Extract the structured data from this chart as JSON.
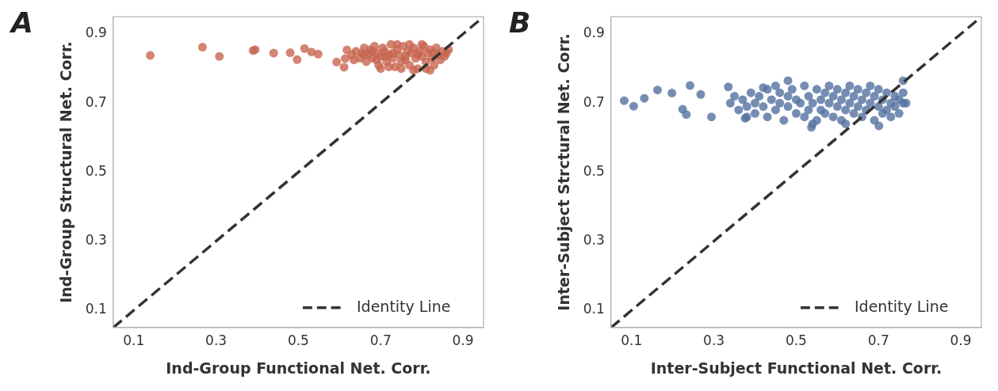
{
  "chart_data": [
    {
      "type": "scatter",
      "title": "A",
      "xlabel": "Ind-Group Functional Net. Corr.",
      "ylabel": "Ind-Group Structural Net. Corr.",
      "xlim": [
        0.05,
        0.95
      ],
      "ylim": [
        0.05,
        0.95
      ],
      "xticks": [
        0.1,
        0.3,
        0.5,
        0.7,
        0.9
      ],
      "yticks": [
        0.1,
        0.3,
        0.5,
        0.7,
        0.9
      ],
      "grid": false,
      "legend": "bottom right",
      "series": [
        {
          "marker": "circle",
          "color": "#c8654f",
          "x": [
            0.14,
            0.267,
            0.308,
            0.39,
            0.395,
            0.44,
            0.48,
            0.497,
            0.515,
            0.532,
            0.548,
            0.593,
            0.611,
            0.618,
            0.614,
            0.63,
            0.635,
            0.64,
            0.65,
            0.655,
            0.66,
            0.665,
            0.67,
            0.675,
            0.68,
            0.685,
            0.69,
            0.695,
            0.7,
            0.705,
            0.71,
            0.715,
            0.72,
            0.725,
            0.73,
            0.735,
            0.74,
            0.745,
            0.75,
            0.755,
            0.76,
            0.765,
            0.77,
            0.775,
            0.78,
            0.785,
            0.79,
            0.795,
            0.8,
            0.805,
            0.81,
            0.815,
            0.82,
            0.825,
            0.83,
            0.835,
            0.84,
            0.845,
            0.85,
            0.855,
            0.86,
            0.865,
            0.7,
            0.72,
            0.75,
            0.78,
            0.81,
            0.82,
            0.74,
            0.77,
            0.8,
            0.66,
            0.69,
            0.71,
            0.73,
            0.76,
            0.79,
            0.83,
            0.68
          ],
          "values": [
            0.838,
            0.862,
            0.835,
            0.852,
            0.855,
            0.845,
            0.846,
            0.826,
            0.858,
            0.848,
            0.842,
            0.819,
            0.804,
            0.854,
            0.829,
            0.84,
            0.825,
            0.85,
            0.83,
            0.845,
            0.86,
            0.82,
            0.84,
            0.855,
            0.83,
            0.865,
            0.845,
            0.81,
            0.835,
            0.86,
            0.85,
            0.82,
            0.84,
            0.87,
            0.83,
            0.805,
            0.855,
            0.84,
            0.82,
            0.865,
            0.835,
            0.85,
            0.81,
            0.845,
            0.86,
            0.83,
            0.8,
            0.85,
            0.835,
            0.865,
            0.82,
            0.845,
            0.855,
            0.83,
            0.81,
            0.86,
            0.84,
            0.825,
            0.85,
            0.835,
            0.845,
            0.855,
            0.8,
            0.805,
            0.8,
            0.795,
            0.8,
            0.795,
            0.87,
            0.87,
            0.87,
            0.84,
            0.825,
            0.835,
            0.845,
            0.825,
            0.84,
            0.845,
            0.85
          ]
        },
        {
          "type": "line",
          "name": "Identity Line",
          "color": "#333333",
          "line_style": "dashed",
          "x": [
            0.05,
            0.95
          ],
          "values": [
            0.05,
            0.95
          ]
        }
      ]
    },
    {
      "type": "scatter",
      "title": "B",
      "xlabel": "Inter-Subject Functional Net. Corr.",
      "ylabel": "Inter-Subject Strctural Net. Corr.",
      "xlim": [
        0.05,
        0.95
      ],
      "ylim": [
        0.05,
        0.95
      ],
      "xticks": [
        0.1,
        0.3,
        0.5,
        0.7,
        0.9
      ],
      "yticks": [
        0.1,
        0.3,
        0.5,
        0.7,
        0.9
      ],
      "grid": false,
      "legend": "bottom right",
      "series": [
        {
          "marker": "circle",
          "color": "#5470a0",
          "x": [
            0.082,
            0.105,
            0.131,
            0.163,
            0.198,
            0.224,
            0.233,
            0.242,
            0.268,
            0.294,
            0.335,
            0.376,
            0.48,
            0.537,
            0.701,
            0.76,
            0.767,
            0.34,
            0.35,
            0.36,
            0.37,
            0.38,
            0.39,
            0.4,
            0.4,
            0.41,
            0.42,
            0.43,
            0.43,
            0.44,
            0.45,
            0.46,
            0.46,
            0.47,
            0.48,
            0.48,
            0.49,
            0.5,
            0.5,
            0.51,
            0.52,
            0.52,
            0.53,
            0.53,
            0.54,
            0.55,
            0.55,
            0.56,
            0.56,
            0.57,
            0.57,
            0.58,
            0.58,
            0.59,
            0.59,
            0.6,
            0.6,
            0.61,
            0.61,
            0.62,
            0.62,
            0.63,
            0.63,
            0.64,
            0.64,
            0.65,
            0.65,
            0.66,
            0.66,
            0.67,
            0.67,
            0.68,
            0.68,
            0.69,
            0.69,
            0.7,
            0.7,
            0.71,
            0.71,
            0.72,
            0.72,
            0.73,
            0.73,
            0.74,
            0.74,
            0.75,
            0.75,
            0.76,
            0.76,
            0.45,
            0.54,
            0.62,
            0.38,
            0.42
          ],
          "values": [
            0.707,
            0.691,
            0.714,
            0.738,
            0.729,
            0.682,
            0.667,
            0.751,
            0.725,
            0.66,
            0.747,
            0.656,
            0.765,
            0.63,
            0.634,
            0.765,
            0.7,
            0.7,
            0.72,
            0.68,
            0.71,
            0.69,
            0.73,
            0.7,
            0.67,
            0.72,
            0.69,
            0.74,
            0.66,
            0.71,
            0.68,
            0.73,
            0.7,
            0.65,
            0.72,
            0.69,
            0.74,
            0.67,
            0.71,
            0.7,
            0.75,
            0.66,
            0.72,
            0.68,
            0.7,
            0.74,
            0.65,
            0.71,
            0.68,
            0.73,
            0.67,
            0.7,
            0.75,
            0.66,
            0.72,
            0.69,
            0.74,
            0.71,
            0.65,
            0.73,
            0.68,
            0.7,
            0.75,
            0.67,
            0.72,
            0.69,
            0.74,
            0.66,
            0.71,
            0.73,
            0.68,
            0.7,
            0.75,
            0.65,
            0.72,
            0.69,
            0.74,
            0.67,
            0.71,
            0.73,
            0.68,
            0.7,
            0.66,
            0.72,
            0.69,
            0.71,
            0.67,
            0.7,
            0.73,
            0.75,
            0.64,
            0.64,
            0.66,
            0.745
          ]
        },
        {
          "type": "line",
          "name": "Identity Line",
          "color": "#333333",
          "line_style": "dashed",
          "x": [
            0.05,
            0.95
          ],
          "values": [
            0.05,
            0.95
          ]
        }
      ]
    }
  ]
}
